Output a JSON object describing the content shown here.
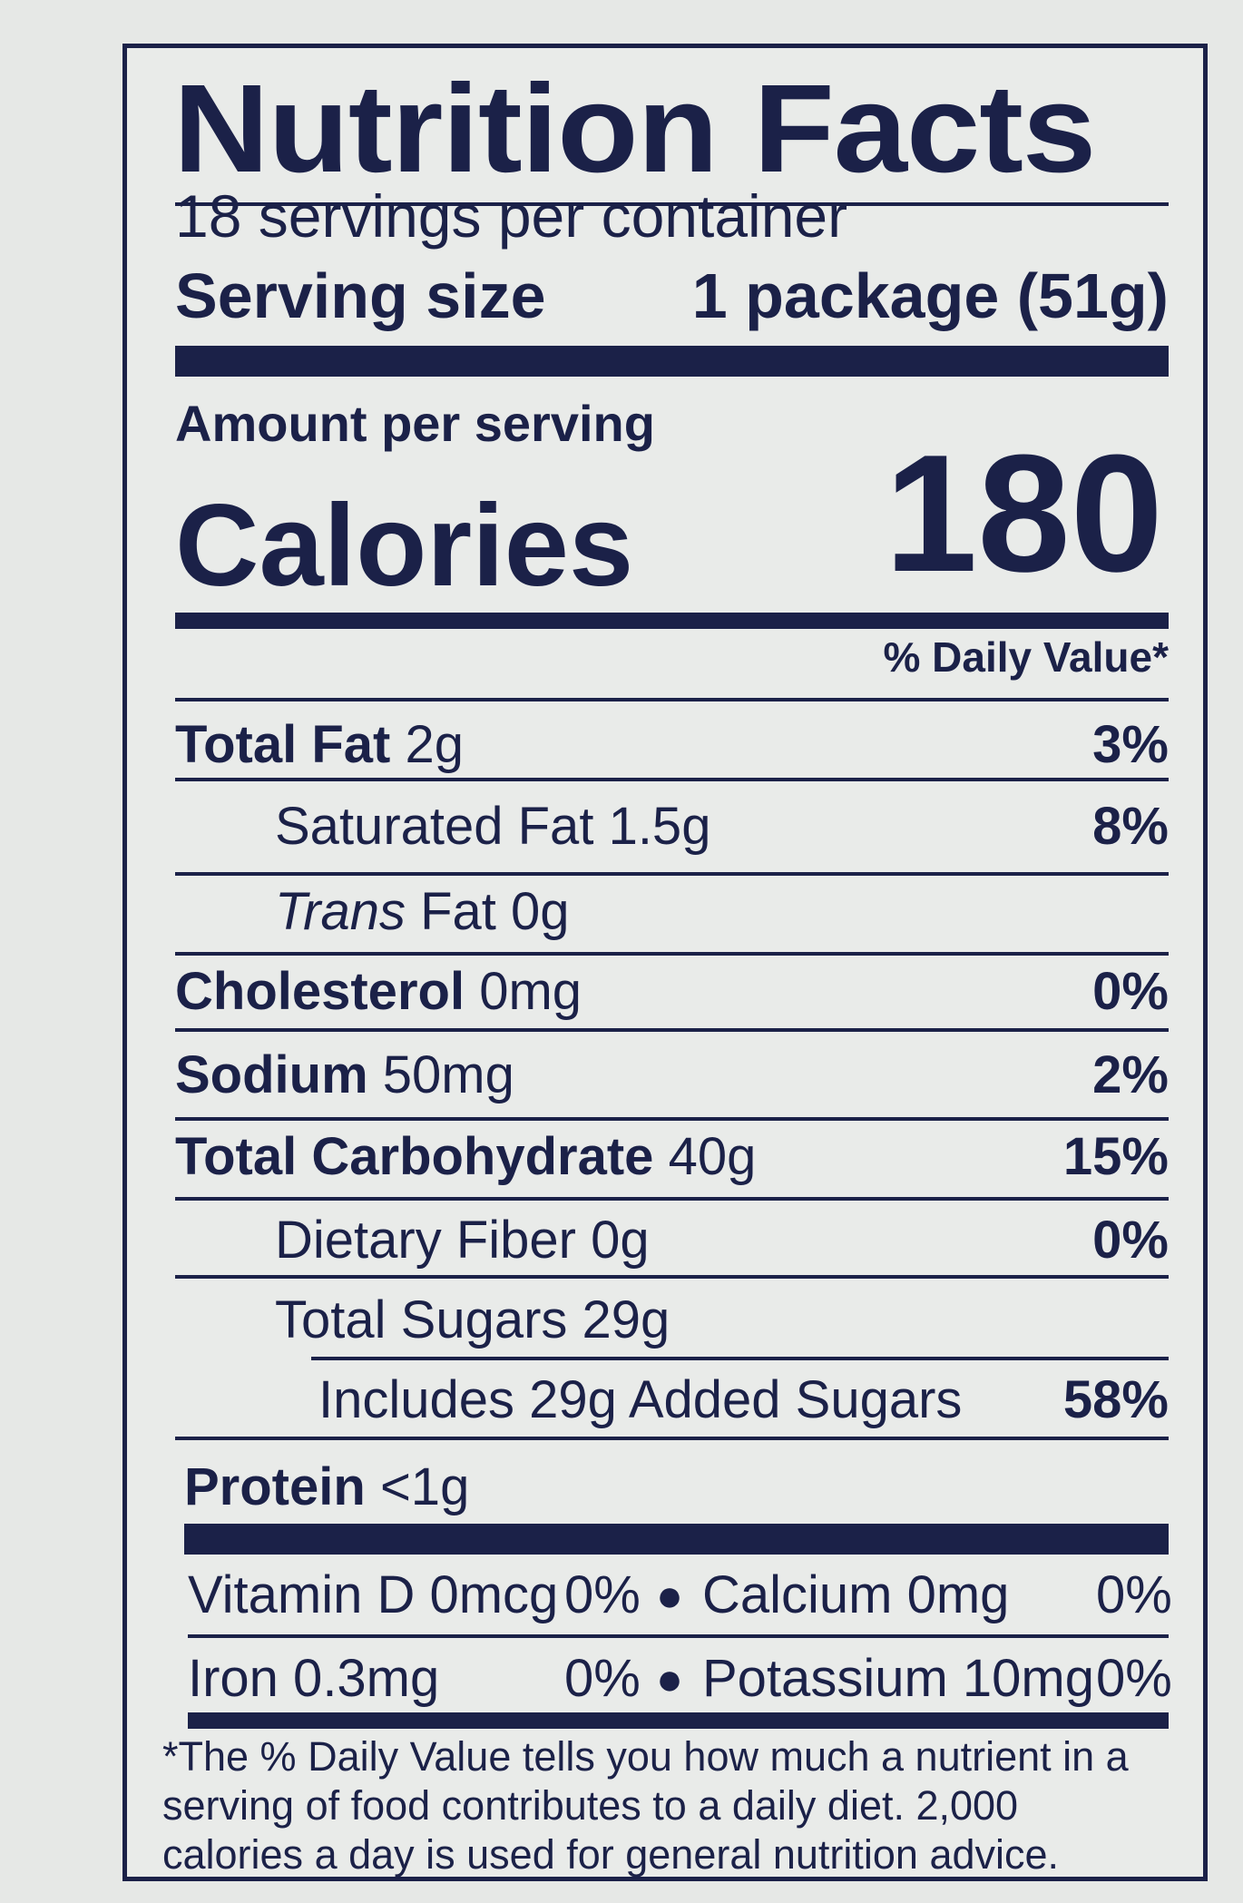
{
  "label": {
    "title": "Nutrition Facts",
    "servings_per_container": "18 servings per container",
    "serving_size_label": "Serving size",
    "serving_size_value": "1 package (51g)",
    "amount_per_serving": "Amount per serving",
    "calories_label": "Calories",
    "calories_value": "180",
    "daily_value_header": "% Daily Value*"
  },
  "nutrients": [
    {
      "name": "Total Fat",
      "amount": "2g",
      "dv": "3%"
    },
    {
      "name": "Saturated Fat",
      "amount": "1.5g",
      "dv": "8%"
    },
    {
      "name_italic": "Trans",
      "name_rest": "Fat 0g"
    },
    {
      "name": "Cholesterol",
      "amount": "0mg",
      "dv": "0%"
    },
    {
      "name": "Sodium",
      "amount": "50mg",
      "dv": "2%"
    },
    {
      "name": "Total Carbohydrate",
      "amount": "40g",
      "dv": "15%"
    },
    {
      "name": "Dietary Fiber",
      "amount": "0g",
      "dv": "0%"
    },
    {
      "name": "Total Sugars",
      "amount": "29g"
    },
    {
      "text": "Includes 29g Added Sugars",
      "dv": "58%"
    },
    {
      "name": "Protein",
      "amount": "<1g"
    }
  ],
  "vitamins": [
    {
      "left": "Vitamin D 0mcg",
      "left_dv": "0%",
      "right": "Calcium 0mg",
      "right_dv": "0%"
    },
    {
      "left": "Iron 0.3mg",
      "left_dv": "0%",
      "right": "Potassium 10mg",
      "right_dv": "0%"
    }
  ],
  "bullet": "●",
  "footnote": "*The % Daily Value tells you how much a nutrient in a serving of food contributes to a daily diet. 2,000 calories a day is used for general nutrition advice.",
  "colors": {
    "ink": "#1b2148",
    "background": "#e9ebe9"
  }
}
